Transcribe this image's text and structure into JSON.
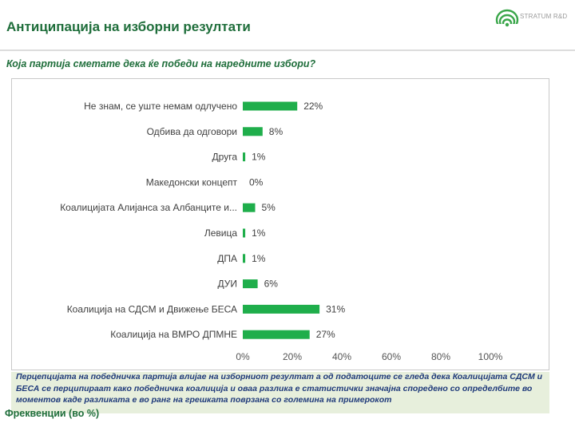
{
  "header": {
    "title": "Антиципација на изборни резултати",
    "logo_text": "STRATUM R&D",
    "question": "Која партија сметате дека ќе победи на наредните избори?"
  },
  "note": "Перцепцијата на победничка партија влијае на изборниот резултат а од податоците се гледа дека Коалицијата СДСМ и БЕСА се перципираат како победничка коалиција и оваа разлика е статистички значајна споредено со определбите во моментов каде разликата е во ранг на грешката поврзана со големина на примерокот",
  "footer": "Фреквенции (во %)",
  "colors": {
    "bar": "#1fae4b",
    "accent": "#1f6e3b"
  },
  "chart_data": {
    "type": "bar",
    "orientation": "horizontal",
    "categories": [
      "Не знам, се уште немам одлучено",
      "Одбива да одговори",
      "Друга",
      "Македонски концепт",
      "Коалицијата Алијанса за Албанците и...",
      "Левица",
      "ДПА",
      "ДУИ",
      "Коалиција на СДСМ и Движење БЕСА",
      "Коалиција на ВМРО ДПМНЕ"
    ],
    "values": [
      22,
      8,
      1,
      0,
      5,
      1,
      1,
      6,
      31,
      27
    ],
    "value_labels": [
      "22%",
      "8%",
      "1%",
      "0%",
      "5%",
      "1%",
      "1%",
      "6%",
      "31%",
      "27%"
    ],
    "xlim": [
      0,
      100
    ],
    "xticks": [
      "0%",
      "20%",
      "40%",
      "60%",
      "80%",
      "100%"
    ],
    "grid": false
  }
}
